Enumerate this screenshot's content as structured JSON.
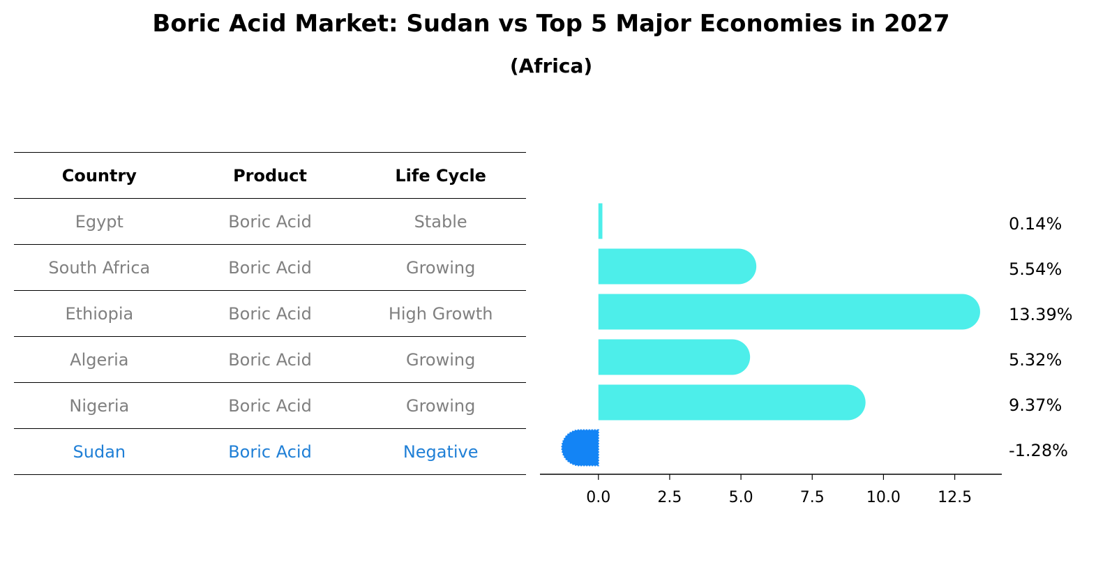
{
  "title": "Boric Acid Market: Sudan vs Top 5 Major Economies in 2027",
  "subtitle": "(Africa)",
  "colors": {
    "bar": "#4DEEEA",
    "highlight_bar": "#1384F5",
    "highlight_text": "#1f7fd6",
    "text_muted": "#808080"
  },
  "table": {
    "headers": [
      "Country",
      "Product",
      "Life Cycle"
    ],
    "rows": [
      {
        "country": "Egypt",
        "product": "Boric Acid",
        "life_cycle": "Stable"
      },
      {
        "country": "South Africa",
        "product": "Boric Acid",
        "life_cycle": "Growing"
      },
      {
        "country": "Ethiopia",
        "product": "Boric Acid",
        "life_cycle": "High Growth"
      },
      {
        "country": "Algeria",
        "product": "Boric Acid",
        "life_cycle": "Growing"
      },
      {
        "country": "Nigeria",
        "product": "Boric Acid",
        "life_cycle": "Growing"
      },
      {
        "country": "Sudan",
        "product": "Boric Acid",
        "life_cycle": "Negative"
      }
    ]
  },
  "chart_data": {
    "type": "bar",
    "orientation": "horizontal",
    "categories": [
      "Egypt",
      "South Africa",
      "Ethiopia",
      "Algeria",
      "Nigeria",
      "Sudan"
    ],
    "values": [
      0.14,
      5.54,
      13.39,
      5.32,
      9.37,
      -1.28
    ],
    "value_labels": [
      "0.14%",
      "5.54%",
      "13.39%",
      "5.32%",
      "9.37%",
      "-1.28%"
    ],
    "highlight": "Sudan",
    "xlim": [
      -2.05,
      14.15
    ],
    "xticks": [
      0.0,
      2.5,
      5.0,
      7.5,
      10.0,
      12.5
    ],
    "xtick_labels": [
      "0.0",
      "2.5",
      "5.0",
      "7.5",
      "10.0",
      "12.5"
    ],
    "grid": false
  }
}
